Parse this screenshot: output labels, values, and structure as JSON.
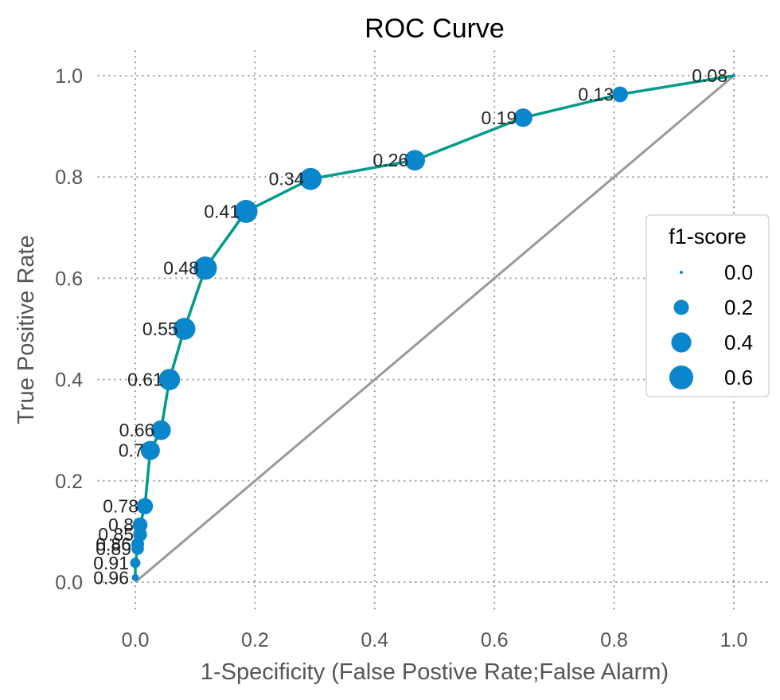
{
  "chart_data": {
    "type": "scatter",
    "title": "ROC Curve",
    "xlabel": "1-Specificity (False Postive Rate;False Alarm)",
    "ylabel": "True Positive Rate",
    "xlim": [
      -0.05,
      1.05
    ],
    "ylim": [
      -0.05,
      1.05
    ],
    "xticks": [
      "0.0",
      "0.2",
      "0.4",
      "0.6",
      "0.8",
      "1.0"
    ],
    "yticks": [
      "0.0",
      "0.2",
      "0.4",
      "0.6",
      "0.8",
      "1.0"
    ],
    "grid": true,
    "legend_position": "right",
    "legend": {
      "title": "f1-score",
      "entries": [
        {
          "label": "0.0",
          "size": 0.0
        },
        {
          "label": "0.2",
          "size": 0.2
        },
        {
          "label": "0.4",
          "size": 0.4
        },
        {
          "label": "0.6",
          "size": 0.6
        }
      ]
    },
    "curve_color": "#009b8a",
    "point_color": "#0a86cc",
    "diagonal_color": "#999999",
    "diagonal": {
      "x": [
        0,
        1
      ],
      "y": [
        0,
        1
      ]
    },
    "points": [
      {
        "x": 1.0,
        "y": 1.0,
        "label": "0.08",
        "f1": 0.0
      },
      {
        "x": 0.81,
        "y": 0.963,
        "label": "0.13",
        "f1": 0.22
      },
      {
        "x": 0.648,
        "y": 0.917,
        "label": "0.19",
        "f1": 0.33
      },
      {
        "x": 0.467,
        "y": 0.833,
        "label": "0.26",
        "f1": 0.42
      },
      {
        "x": 0.293,
        "y": 0.796,
        "label": "0.34",
        "f1": 0.5
      },
      {
        "x": 0.185,
        "y": 0.732,
        "label": "0.41",
        "f1": 0.55
      },
      {
        "x": 0.117,
        "y": 0.62,
        "label": "0.48",
        "f1": 0.56
      },
      {
        "x": 0.082,
        "y": 0.5,
        "label": "0.55",
        "f1": 0.5
      },
      {
        "x": 0.057,
        "y": 0.4,
        "label": "0.61",
        "f1": 0.46
      },
      {
        "x": 0.043,
        "y": 0.3,
        "label": "0.66",
        "f1": 0.38
      },
      {
        "x": 0.025,
        "y": 0.26,
        "label": "0.7",
        "f1": 0.36
      },
      {
        "x": 0.016,
        "y": 0.15,
        "label": "0.78",
        "f1": 0.24
      },
      {
        "x": 0.008,
        "y": 0.113,
        "label": "0.8",
        "f1": 0.19
      },
      {
        "x": 0.008,
        "y": 0.094,
        "label": "0.85",
        "f1": 0.16
      },
      {
        "x": 0.004,
        "y": 0.075,
        "label": "0.86",
        "f1": 0.13
      },
      {
        "x": 0.004,
        "y": 0.066,
        "label": "0.89",
        "f1": 0.12
      },
      {
        "x": 0.0,
        "y": 0.038,
        "label": "0.91",
        "f1": 0.07
      },
      {
        "x": 0.0,
        "y": 0.009,
        "label": "0.96",
        "f1": 0.02
      }
    ]
  }
}
